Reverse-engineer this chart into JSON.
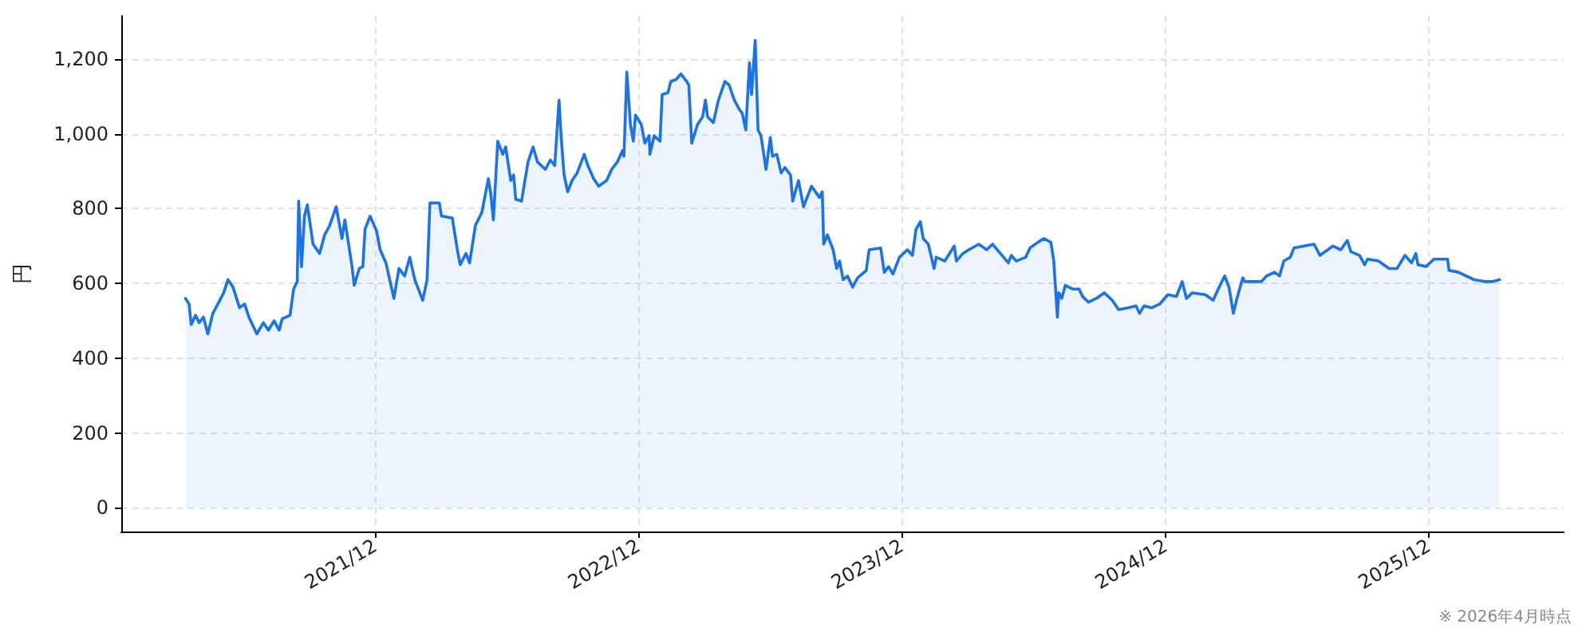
{
  "chart_data": {
    "type": "area",
    "ylabel": "円",
    "annotations": [
      "※ 2026年4月時点"
    ],
    "xlim": [
      "2020-12-14",
      "2026-06-06"
    ],
    "xticks": [
      {
        "value": "2021-12-01",
        "label": "2021/12"
      },
      {
        "value": "2022-12-01",
        "label": "2022/12"
      },
      {
        "value": "2023-12-01",
        "label": "2023/12"
      },
      {
        "value": "2024-12-01",
        "label": "2024/12"
      },
      {
        "value": "2025-12-01",
        "label": "2025/12"
      }
    ],
    "ylim": [
      -63,
      1315
    ],
    "yticks": [
      0,
      200,
      400,
      600,
      800,
      {
        "value": 1000,
        "label": "1,000"
      },
      {
        "value": 1200,
        "label": "1,200"
      }
    ],
    "grid": true,
    "marker": "none",
    "series": [
      {
        "color": "#1a73e8",
        "x": [
          "2021-03-13",
          "2021-03-18",
          "2021-03-21",
          "2021-03-27",
          "2021-04-01",
          "2021-04-07",
          "2021-04-13",
          "2021-04-20",
          "2021-04-27",
          "2021-05-05",
          "2021-05-11",
          "2021-05-18",
          "2021-05-27",
          "2021-06-03",
          "2021-06-09",
          "2021-06-20",
          "2021-06-29",
          "2021-07-06",
          "2021-07-14",
          "2021-07-21",
          "2021-07-25",
          "2021-08-05",
          "2021-08-10",
          "2021-08-15",
          "2021-08-17",
          "2021-08-21",
          "2021-08-25",
          "2021-08-29",
          "2021-09-06",
          "2021-09-15",
          "2021-09-22",
          "2021-09-29",
          "2021-10-08",
          "2021-10-16",
          "2021-10-20",
          "2021-10-30",
          "2021-11-02",
          "2021-11-09",
          "2021-11-14",
          "2021-11-17",
          "2021-11-24",
          "2021-12-03",
          "2021-12-08",
          "2021-12-16",
          "2021-12-27",
          "2022-01-03",
          "2022-01-11",
          "2022-01-18",
          "2022-01-25",
          "2022-02-05",
          "2022-02-11",
          "2022-02-15",
          "2022-02-28",
          "2022-03-03",
          "2022-03-18",
          "2022-03-25",
          "2022-03-29",
          "2022-04-06",
          "2022-04-11",
          "2022-04-19",
          "2022-04-28",
          "2022-05-07",
          "2022-05-10",
          "2022-05-14",
          "2022-05-20",
          "2022-05-27",
          "2022-05-31",
          "2022-06-07",
          "2022-06-11",
          "2022-06-14",
          "2022-06-22",
          "2022-07-01",
          "2022-07-08",
          "2022-07-14",
          "2022-07-25",
          "2022-08-01",
          "2022-08-07",
          "2022-08-13",
          "2022-08-16",
          "2022-08-20",
          "2022-08-25",
          "2022-08-31",
          "2022-09-07",
          "2022-09-17",
          "2022-09-22",
          "2022-09-30",
          "2022-10-07",
          "2022-10-18",
          "2022-10-25",
          "2022-11-02",
          "2022-11-09",
          "2022-11-11",
          "2022-11-15",
          "2022-11-20",
          "2022-11-24",
          "2022-11-27",
          "2022-12-05",
          "2022-12-10",
          "2022-12-16",
          "2022-12-17",
          "2022-12-23",
          "2022-12-31",
          "2023-01-03",
          "2023-01-11",
          "2023-01-15",
          "2023-01-22",
          "2023-01-29",
          "2023-02-06",
          "2023-02-09",
          "2023-02-13",
          "2023-02-21",
          "2023-02-28",
          "2023-03-04",
          "2023-03-07",
          "2023-03-15",
          "2023-03-22",
          "2023-03-31",
          "2023-04-06",
          "2023-04-13",
          "2023-04-20",
          "2023-04-24",
          "2023-04-29",
          "2023-05-04",
          "2023-05-07",
          "2023-05-12",
          "2023-05-16",
          "2023-05-20",
          "2023-05-27",
          "2023-06-02",
          "2023-06-05",
          "2023-06-11",
          "2023-06-17",
          "2023-06-22",
          "2023-06-30",
          "2023-07-03",
          "2023-07-11",
          "2023-07-18",
          "2023-07-29",
          "2023-08-09",
          "2023-08-13",
          "2023-08-15",
          "2023-08-20",
          "2023-08-28",
          "2023-09-02",
          "2023-09-06",
          "2023-09-11",
          "2023-09-17",
          "2023-09-24",
          "2023-10-01",
          "2023-10-13",
          "2023-10-17",
          "2023-11-02",
          "2023-11-07",
          "2023-11-13",
          "2023-11-19",
          "2023-11-28",
          "2023-12-09",
          "2023-12-16",
          "2023-12-21",
          "2023-12-27",
          "2023-12-31",
          "2024-01-07",
          "2024-01-15",
          "2024-01-18",
          "2024-01-30",
          "2024-02-12",
          "2024-02-15",
          "2024-02-24",
          "2024-03-03",
          "2024-03-17",
          "2024-03-28",
          "2024-04-05",
          "2024-04-16",
          "2024-04-27",
          "2024-05-01",
          "2024-05-08",
          "2024-05-21",
          "2024-05-27",
          "2024-06-07",
          "2024-06-15",
          "2024-06-25",
          "2024-06-29",
          "2024-07-04",
          "2024-07-06",
          "2024-07-10",
          "2024-07-15",
          "2024-07-25",
          "2024-08-03",
          "2024-08-08",
          "2024-08-16",
          "2024-08-27",
          "2024-09-07",
          "2024-09-18",
          "2024-09-27",
          "2024-10-10",
          "2024-10-21",
          "2024-10-26",
          "2024-11-01",
          "2024-11-12",
          "2024-11-23",
          "2024-12-04",
          "2024-12-16",
          "2024-12-24",
          "2024-12-30",
          "2025-01-07",
          "2025-01-25",
          "2025-02-05",
          "2025-02-12",
          "2025-02-21",
          "2025-02-27",
          "2025-03-05",
          "2025-03-10",
          "2025-03-18",
          "2025-03-21",
          "2025-04-13",
          "2025-04-20",
          "2025-05-01",
          "2025-05-08",
          "2025-05-14",
          "2025-05-23",
          "2025-05-28",
          "2025-06-11",
          "2025-06-25",
          "2025-07-03",
          "2025-07-14",
          "2025-07-21",
          "2025-08-01",
          "2025-08-10",
          "2025-08-15",
          "2025-08-27",
          "2025-09-03",
          "2025-09-07",
          "2025-09-22",
          "2025-10-07",
          "2025-10-18",
          "2025-10-29",
          "2025-11-07",
          "2025-11-13",
          "2025-11-16",
          "2025-11-27",
          "2025-12-08",
          "2025-12-27",
          "2025-12-29",
          "2026-01-11",
          "2026-01-22",
          "2026-02-02",
          "2026-02-16",
          "2026-02-28",
          "2026-03-09"
        ],
        "values": [
          560,
          545,
          490,
          515,
          495,
          510,
          465,
          520,
          545,
          575,
          610,
          590,
          535,
          545,
          510,
          465,
          495,
          475,
          500,
          475,
          505,
          515,
          585,
          605,
          820,
          645,
          780,
          810,
          705,
          680,
          730,
          755,
          805,
          720,
          770,
          645,
          595,
          640,
          645,
          745,
          780,
          740,
          690,
          655,
          560,
          640,
          620,
          670,
          610,
          555,
          610,
          815,
          815,
          780,
          775,
          690,
          650,
          680,
          655,
          755,
          790,
          880,
          845,
          770,
          980,
          945,
          965,
          875,
          890,
          825,
          820,
          925,
          965,
          925,
          905,
          930,
          915,
          1090,
          990,
          890,
          845,
          875,
          895,
          945,
          915,
          880,
          860,
          875,
          905,
          925,
          955,
          940,
          1165,
          1025,
          980,
          1050,
          1025,
          975,
          995,
          945,
          995,
          980,
          1105,
          1110,
          1140,
          1145,
          1160,
          1140,
          1130,
          975,
          1025,
          1045,
          1090,
          1045,
          1030,
          1090,
          1140,
          1130,
          1090,
          1065,
          1055,
          1010,
          1190,
          1105,
          1250,
          1010,
          995,
          905,
          990,
          940,
          945,
          895,
          910,
          890,
          820,
          875,
          805,
          860,
          830,
          845,
          705,
          730,
          690,
          640,
          660,
          610,
          620,
          590,
          615,
          635,
          690,
          695,
          630,
          645,
          625,
          670,
          690,
          675,
          745,
          765,
          720,
          705,
          640,
          670,
          660,
          700,
          660,
          680,
          690,
          705,
          690,
          705,
          680,
          655,
          675,
          660,
          670,
          695,
          710,
          720,
          710,
          660,
          510,
          575,
          560,
          595,
          585,
          585,
          565,
          550,
          560,
          575,
          555,
          530,
          535,
          540,
          520,
          540,
          535,
          545,
          570,
          565,
          605,
          560,
          575,
          570,
          555,
          585,
          620,
          590,
          520,
          560,
          615,
          605,
          605,
          620,
          630,
          620,
          660,
          670,
          695,
          700,
          705,
          675,
          690,
          700,
          690,
          715,
          685,
          675,
          650,
          665,
          660,
          640,
          640,
          675,
          655,
          680,
          650,
          645,
          665,
          665,
          635,
          630,
          620,
          610,
          605,
          605,
          610
        ]
      }
    ]
  }
}
